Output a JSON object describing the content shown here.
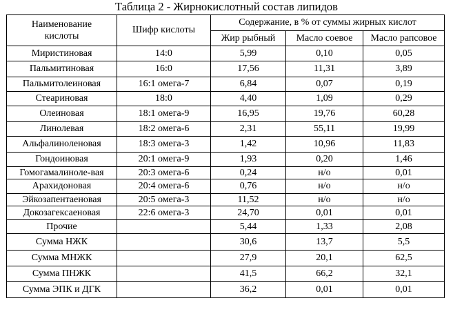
{
  "caption": "Таблица 2 - Жирнокислотный состав липидов",
  "headers": {
    "name_line1": "Наименование",
    "name_line2": "кислоты",
    "code": "Шифр кислоты",
    "content": "Содержание, в % от суммы жирных кислот",
    "fish": "Жир рыбный",
    "soy": "Масло соевое",
    "rapeseed": "Масло рапсовое"
  },
  "rows": [
    {
      "name": "Миристиновая",
      "code": "14:0",
      "fish": "5,99",
      "soy": "0,10",
      "rapeseed": "0,05"
    },
    {
      "name": "Пальмитиновая",
      "code": "16:0",
      "fish": "17,56",
      "soy": "11,31",
      "rapeseed": "3,89"
    },
    {
      "name": "Пальмитолеиновая",
      "code": "16:1 омега-7",
      "fish": "6,84",
      "soy": "0,07",
      "rapeseed": "0,19"
    },
    {
      "name": "Стеариновая",
      "code": "18:0",
      "fish": "4,40",
      "soy": "1,09",
      "rapeseed": "0,29"
    },
    {
      "name": "Олеиновая",
      "code": "18:1 омега-9",
      "fish": "16,95",
      "soy": "19,76",
      "rapeseed": "60,28"
    },
    {
      "name": "Линолевая",
      "code": "18:2 омега-6",
      "fish": "2,31",
      "soy": "55,11",
      "rapeseed": "19,99"
    },
    {
      "name": "Альфалиноленовая",
      "code": "18:3 омега-3",
      "fish": "1,42",
      "soy": "10,96",
      "rapeseed": "11,83"
    },
    {
      "name": "Гондоиновая",
      "code": "20:1 омега-9",
      "fish": "1,93",
      "soy": "0,20",
      "rapeseed": "1,46"
    },
    {
      "name": "Гомогамалиноле-вая",
      "code": "20:3 омега-6",
      "fish": "0,24",
      "soy": "н/о",
      "rapeseed": "0,01"
    },
    {
      "name": "Арахидоновая",
      "code": "20:4 омега-6",
      "fish": "0,76",
      "soy": "н/о",
      "rapeseed": "н/о"
    },
    {
      "name": "Эйкозапентаеновая",
      "code": "20:5 омега-3",
      "fish": "11,52",
      "soy": "н/о",
      "rapeseed": "н/о"
    },
    {
      "name": "Докозагексаеновая",
      "code": "22:6 омега-3",
      "fish": "24,70",
      "soy": "0,01",
      "rapeseed": "0,01"
    },
    {
      "name": "Прочие",
      "code": "",
      "fish": "5,44",
      "soy": "1,33",
      "rapeseed": "2,08"
    },
    {
      "name": "Сумма НЖК",
      "code": "",
      "fish": "30,6",
      "soy": "13,7",
      "rapeseed": "5,5"
    },
    {
      "name": "Сумма МНЖК",
      "code": "",
      "fish": "27,9",
      "soy": "20,1",
      "rapeseed": "62,5"
    },
    {
      "name": "Сумма ПНЖК",
      "code": "",
      "fish": "41,5",
      "soy": "66,2",
      "rapeseed": "32,1"
    },
    {
      "name": "Сумма ЭПК и ДГК",
      "code": "",
      "fish": "36,2",
      "soy": "0,01",
      "rapeseed": "0,01"
    }
  ]
}
